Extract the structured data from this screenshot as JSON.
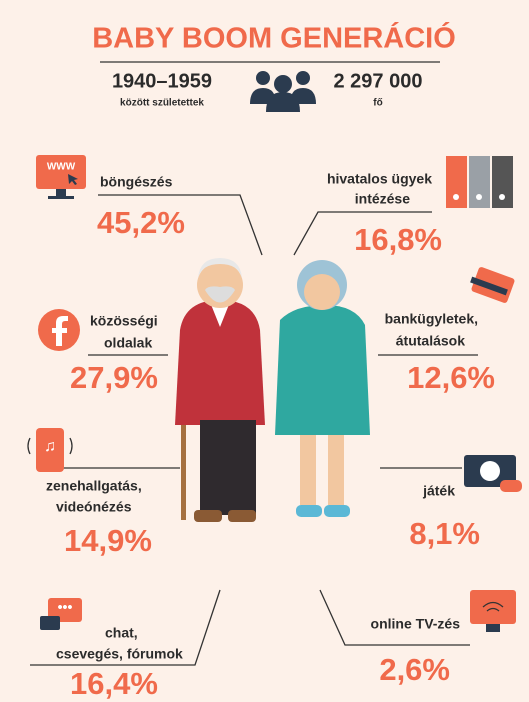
{
  "header": {
    "title": "BABY BOOM GENERÁCIÓ",
    "years": "1940–1959",
    "years_caption": "között születettek",
    "count": "2 297 000",
    "count_caption": "fő"
  },
  "items": [
    {
      "label": [
        "böngészés"
      ],
      "percent": "45,2%"
    },
    {
      "label": [
        "hivatalos ügyek",
        "intézése"
      ],
      "percent": "16,8%"
    },
    {
      "label": [
        "közösségi",
        "oldalak"
      ],
      "percent": "27,9%"
    },
    {
      "label": [
        "bankügyletek,",
        "átutalások"
      ],
      "percent": "12,6%"
    },
    {
      "label": [
        "zenehallgatás,",
        "videónézés"
      ],
      "percent": "14,9%"
    },
    {
      "label": [
        "játék"
      ],
      "percent": "8,1%"
    },
    {
      "label": [
        "chat,",
        "csevegés, fórumok"
      ],
      "percent": "16,4%"
    },
    {
      "label": [
        "online TV-zés"
      ],
      "percent": "2,6%"
    }
  ]
}
